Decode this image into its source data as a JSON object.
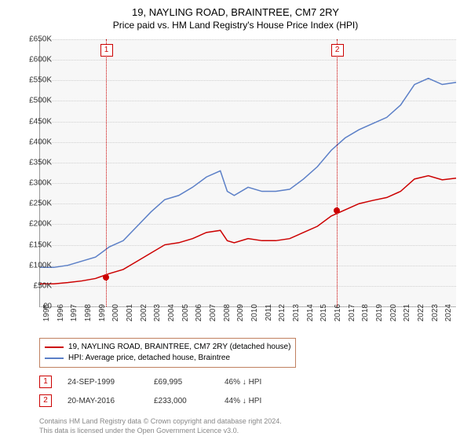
{
  "title": "19, NAYLING ROAD, BRAINTREE, CM7 2RY",
  "subtitle": "Price paid vs. HM Land Registry's House Price Index (HPI)",
  "chart": {
    "type": "line",
    "background_color": "#f7f7f7",
    "grid_color": "#d0d0d0",
    "ylim": [
      0,
      650000
    ],
    "ytick_step": 50000,
    "ylabels": [
      "£0",
      "£50K",
      "£100K",
      "£150K",
      "£200K",
      "£250K",
      "£300K",
      "£350K",
      "£400K",
      "£450K",
      "£500K",
      "£550K",
      "£600K",
      "£650K"
    ],
    "xlim": [
      1995,
      2025
    ],
    "xlabels": [
      "1995",
      "1996",
      "1997",
      "1998",
      "1999",
      "2000",
      "2001",
      "2002",
      "2003",
      "2004",
      "2005",
      "2006",
      "2007",
      "2008",
      "2009",
      "2010",
      "2011",
      "2012",
      "2013",
      "2014",
      "2015",
      "2016",
      "2017",
      "2018",
      "2019",
      "2020",
      "2021",
      "2022",
      "2023",
      "2024"
    ],
    "series": [
      {
        "name": "hpi",
        "color": "#5b7fc7",
        "width": 1.5,
        "points": [
          [
            1995,
            95000
          ],
          [
            1996,
            95000
          ],
          [
            1997,
            100000
          ],
          [
            1998,
            110000
          ],
          [
            1999,
            120000
          ],
          [
            2000,
            145000
          ],
          [
            2001,
            160000
          ],
          [
            2002,
            195000
          ],
          [
            2003,
            230000
          ],
          [
            2004,
            260000
          ],
          [
            2005,
            270000
          ],
          [
            2006,
            290000
          ],
          [
            2007,
            315000
          ],
          [
            2008,
            330000
          ],
          [
            2008.5,
            280000
          ],
          [
            2009,
            270000
          ],
          [
            2010,
            290000
          ],
          [
            2011,
            280000
          ],
          [
            2012,
            280000
          ],
          [
            2013,
            285000
          ],
          [
            2014,
            310000
          ],
          [
            2015,
            340000
          ],
          [
            2016,
            380000
          ],
          [
            2017,
            410000
          ],
          [
            2018,
            430000
          ],
          [
            2019,
            445000
          ],
          [
            2020,
            460000
          ],
          [
            2021,
            490000
          ],
          [
            2022,
            540000
          ],
          [
            2023,
            555000
          ],
          [
            2024,
            540000
          ],
          [
            2025,
            545000
          ]
        ]
      },
      {
        "name": "price_paid",
        "color": "#cc0000",
        "width": 1.5,
        "points": [
          [
            1995,
            55000
          ],
          [
            1996,
            55000
          ],
          [
            1997,
            58000
          ],
          [
            1998,
            62000
          ],
          [
            1999,
            68000
          ],
          [
            2000,
            80000
          ],
          [
            2001,
            90000
          ],
          [
            2002,
            110000
          ],
          [
            2003,
            130000
          ],
          [
            2004,
            150000
          ],
          [
            2005,
            155000
          ],
          [
            2006,
            165000
          ],
          [
            2007,
            180000
          ],
          [
            2008,
            185000
          ],
          [
            2008.5,
            160000
          ],
          [
            2009,
            155000
          ],
          [
            2010,
            165000
          ],
          [
            2011,
            160000
          ],
          [
            2012,
            160000
          ],
          [
            2013,
            165000
          ],
          [
            2014,
            180000
          ],
          [
            2015,
            195000
          ],
          [
            2016,
            220000
          ],
          [
            2017,
            235000
          ],
          [
            2018,
            250000
          ],
          [
            2019,
            258000
          ],
          [
            2020,
            265000
          ],
          [
            2021,
            280000
          ],
          [
            2022,
            310000
          ],
          [
            2023,
            318000
          ],
          [
            2024,
            308000
          ],
          [
            2025,
            312000
          ]
        ]
      }
    ],
    "sale_markers": [
      {
        "n": "1",
        "year": 1999.73,
        "price": 69995,
        "color": "#cc0000"
      },
      {
        "n": "2",
        "year": 2016.38,
        "price": 233000,
        "color": "#cc0000"
      }
    ]
  },
  "legend": {
    "border_color": "#c08060",
    "items": [
      {
        "color": "#cc0000",
        "label": "19, NAYLING ROAD, BRAINTREE, CM7 2RY (detached house)"
      },
      {
        "color": "#5b7fc7",
        "label": "HPI: Average price, detached house, Braintree"
      }
    ]
  },
  "annotations": [
    {
      "n": "1",
      "color": "#cc0000",
      "date": "24-SEP-1999",
      "price": "£69,995",
      "pct": "46% ↓ HPI"
    },
    {
      "n": "2",
      "color": "#cc0000",
      "date": "20-MAY-2016",
      "price": "£233,000",
      "pct": "44% ↓ HPI"
    }
  ],
  "attribution": {
    "line1": "Contains HM Land Registry data © Crown copyright and database right 2024.",
    "line2": "This data is licensed under the Open Government Licence v3.0."
  }
}
